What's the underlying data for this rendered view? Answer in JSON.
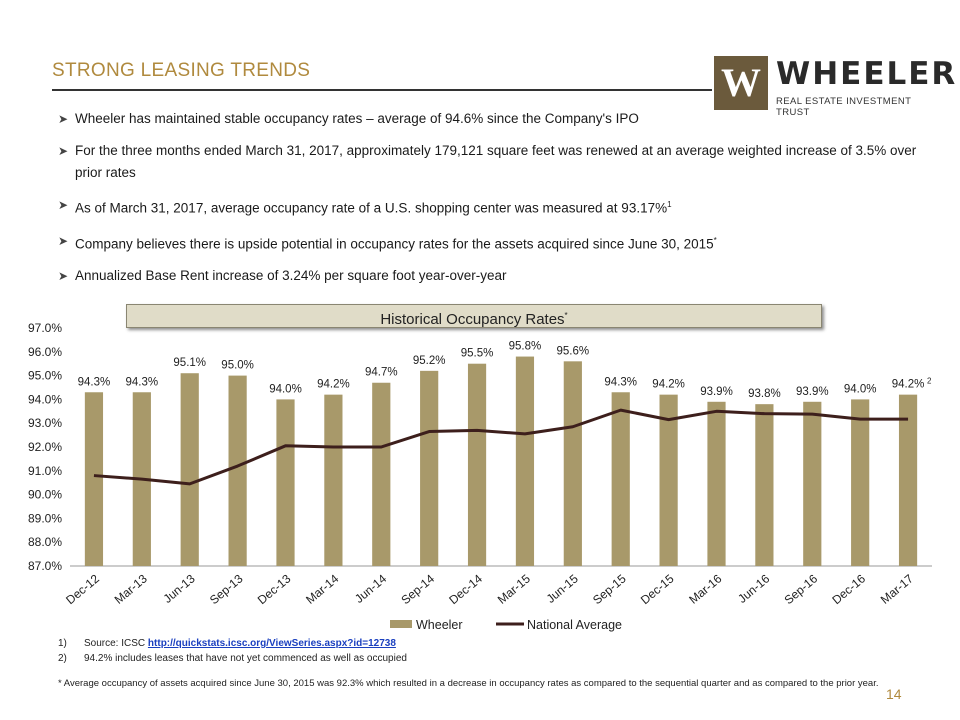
{
  "header": {
    "title": "STRONG LEASING TRENDS",
    "logo_mark": "W",
    "logo_name": "WHEELER",
    "logo_tagline": "REAL ESTATE INVESTMENT TRUST"
  },
  "bullets": [
    {
      "text": "Wheeler has maintained stable occupancy rates – average of 94.6% since the Company's IPO",
      "sup": ""
    },
    {
      "text": "For the three months ended March 31, 2017, approximately 179,121 square feet was renewed at an average weighted increase of 3.5% over prior rates",
      "sup": ""
    },
    {
      "text": "As of March 31, 2017, average occupancy rate of a U.S. shopping center was measured at 93.17%",
      "sup": "1"
    },
    {
      "text": "Company believes there is upside potential in occupancy rates for the assets acquired since June 30, 2015",
      "sup": "*"
    },
    {
      "text": "Annualized Base Rent increase of 3.24% per square foot year-over-year",
      "sup": ""
    }
  ],
  "chart_banner": {
    "text": "Historical Occupancy Rates",
    "sup": "*"
  },
  "chart_data": {
    "type": "bar",
    "title": "Historical Occupancy Rates*",
    "categories": [
      "Dec-12",
      "Mar-13",
      "Jun-13",
      "Sep-13",
      "Dec-13",
      "Mar-14",
      "Jun-14",
      "Sep-14",
      "Dec-14",
      "Mar-15",
      "Jun-15",
      "Sep-15",
      "Dec-15",
      "Mar-16",
      "Jun-16",
      "Sep-16",
      "Dec-16",
      "Mar-17"
    ],
    "series": [
      {
        "name": "Wheeler",
        "kind": "bar",
        "color": "#a8996a",
        "values": [
          94.3,
          94.3,
          95.1,
          95.0,
          94.0,
          94.2,
          94.7,
          95.2,
          95.5,
          95.8,
          95.6,
          94.3,
          94.2,
          93.9,
          93.8,
          93.9,
          94.0,
          94.2
        ],
        "labels": [
          "94.3%",
          "94.3%",
          "95.1%",
          "95.0%",
          "94.0%",
          "94.2%",
          "94.7%",
          "95.2%",
          "95.5%",
          "95.8%",
          "95.6%",
          "94.3%",
          "94.2%",
          "93.9%",
          "93.8%",
          "93.9%",
          "94.0%",
          "94.2%"
        ],
        "last_label_sup": "2"
      },
      {
        "name": "National Average",
        "kind": "line",
        "color": "#3d1f1c",
        "values": [
          90.8,
          90.65,
          90.45,
          91.2,
          92.05,
          92.0,
          92.0,
          92.65,
          92.7,
          92.55,
          92.85,
          93.55,
          93.15,
          93.5,
          93.4,
          93.38,
          93.17,
          93.17
        ]
      }
    ],
    "ylim": [
      87.0,
      97.0
    ],
    "yticks": [
      "87.0%",
      "88.0%",
      "89.0%",
      "90.0%",
      "91.0%",
      "92.0%",
      "93.0%",
      "94.0%",
      "95.0%",
      "96.0%",
      "97.0%"
    ],
    "xlabel": "",
    "ylabel": "",
    "legend_position": "bottom",
    "grid": false
  },
  "footnotes": [
    {
      "num": "1)",
      "text": "Source: ICSC ",
      "link": "http://quickstats.icsc.org/ViewSeries.aspx?id=12738"
    },
    {
      "num": "2)",
      "text": "94.2% includes leases that have not yet commenced as well as occupied",
      "link": ""
    }
  ],
  "footer_note": "* Average occupancy of assets acquired since June 30, 2015 was 92.3% which resulted in a decrease in occupancy rates as compared to the sequential quarter and as compared to the prior year.",
  "page_number": "14",
  "colors": {
    "accent": "#b08a3e",
    "bar": "#a8996a",
    "line": "#3d1f1c"
  }
}
